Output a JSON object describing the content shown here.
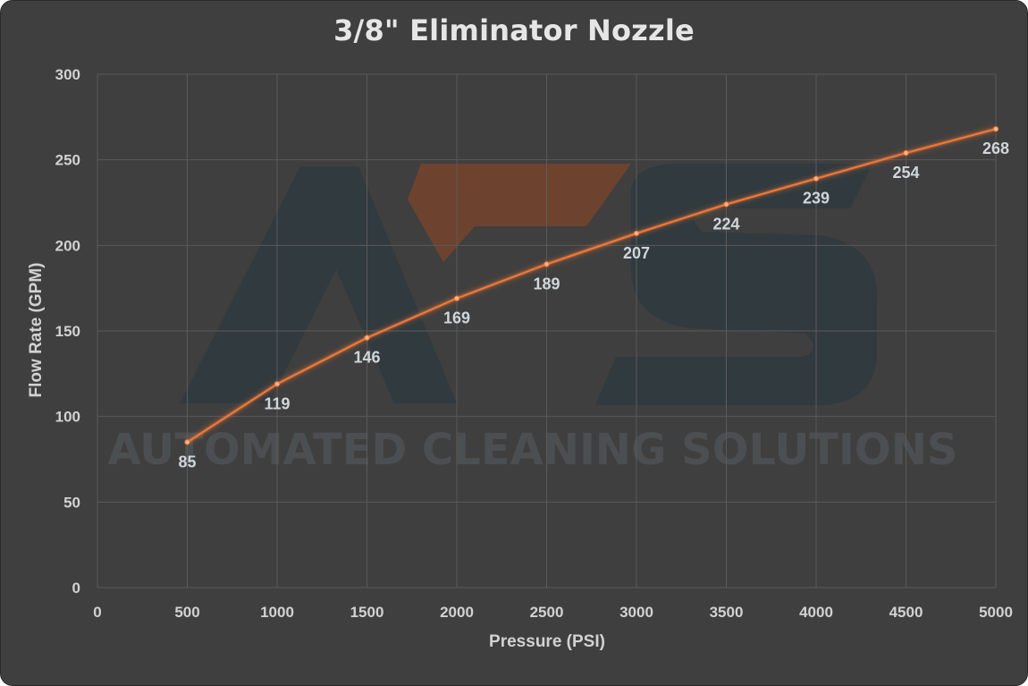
{
  "chart_data": {
    "type": "line",
    "title": "3/8\" Eliminator Nozzle",
    "xlabel": "Pressure (PSI)",
    "ylabel": "Flow Rate (GPM)",
    "xlim": [
      0,
      5000
    ],
    "ylim": [
      0,
      300
    ],
    "x_ticks": [
      "0",
      "500",
      "1000",
      "1500",
      "2000",
      "2500",
      "3000",
      "3500",
      "4000",
      "4500",
      "5000"
    ],
    "y_ticks": [
      "0",
      "50",
      "100",
      "150",
      "200",
      "250",
      "300"
    ],
    "x": [
      500,
      1000,
      1500,
      2000,
      2500,
      3000,
      3500,
      4000,
      4500,
      5000
    ],
    "series": [
      {
        "values": [
          85,
          119,
          146,
          169,
          189,
          207,
          224,
          239,
          254,
          268
        ],
        "color": "#f07838"
      }
    ],
    "data_labels": [
      "85",
      "119",
      "146",
      "169",
      "189",
      "207",
      "224",
      "239",
      "254",
      "268"
    ],
    "grid": true,
    "legend": "none"
  },
  "watermark": {
    "logo_letters": "ACS",
    "text": "AUTOMATED CLEANING SOLUTIONS"
  },
  "colors": {
    "background": "#3f3f3f",
    "grid": "#5a5a5a",
    "line": "#f07838",
    "text": "#d2d2d2"
  }
}
